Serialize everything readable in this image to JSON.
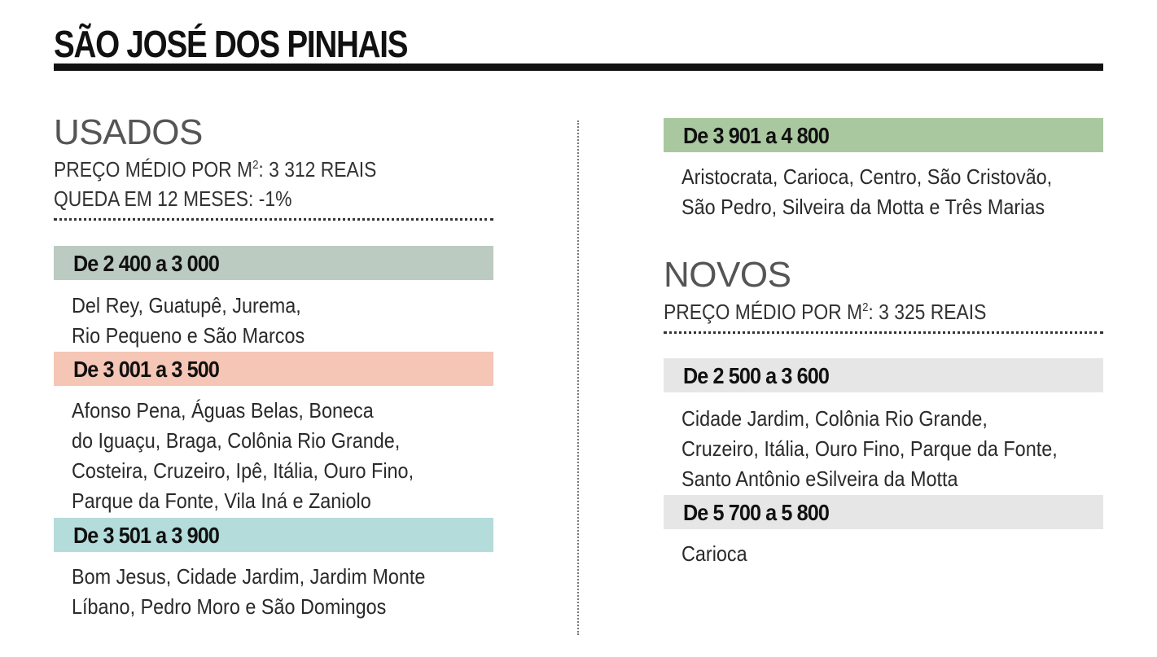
{
  "title": "SÃO JOSÉ DOS PINHAIS",
  "colors": {
    "band_green_gray": "#bccbc1",
    "band_salmon": "#f5c6b6",
    "band_teal": "#b4dcdb",
    "band_green": "#a9c89f",
    "band_gray": "#e6e6e7"
  },
  "usados": {
    "heading": "USADOS",
    "price_label": "PREÇO MÉDIO POR M",
    "price_sup": "2",
    "price_value": ": 3 312 REAIS",
    "change": "QUEDA EM 12 MESES: -1%",
    "ranges": [
      {
        "label": "De 2 400 a 3 000",
        "lines": [
          "Del Rey, Guatupê, Jurema,",
          "Rio Pequeno e São Marcos"
        ]
      },
      {
        "label": "De 3 001 a 3 500",
        "lines": [
          "Afonso Pena, Águas Belas, Boneca",
          "do Iguaçu, Braga, Colônia Rio Grande,",
          "Costeira, Cruzeiro, Ipê, Itália, Ouro Fino,",
          "Parque da Fonte, Vila Iná e Zaniolo"
        ]
      },
      {
        "label": "De 3 501 a 3 900",
        "lines": [
          "Bom Jesus, Cidade Jardim, Jardim Monte",
          "Líbano, Pedro Moro e São Domingos"
        ]
      },
      {
        "label": "De 3 901 a 4 800",
        "lines": [
          "Aristocrata, Carioca, Centro, São Cristovão,",
          "São Pedro, Silveira da Motta e Três Marias"
        ]
      }
    ]
  },
  "novos": {
    "heading": "NOVOS",
    "price_label": "PREÇO MÉDIO POR M",
    "price_sup": "2",
    "price_value": ": 3 325 REAIS",
    "ranges": [
      {
        "label": "De 2 500 a 3 600",
        "lines": [
          "Cidade Jardim, Colônia Rio Grande,",
          "Cruzeiro, Itália, Ouro Fino, Parque da Fonte,",
          "Santo Antônio eSilveira da Motta"
        ]
      },
      {
        "label": "De 5 700 a 5 800",
        "lines": [
          "Carioca"
        ]
      }
    ]
  }
}
